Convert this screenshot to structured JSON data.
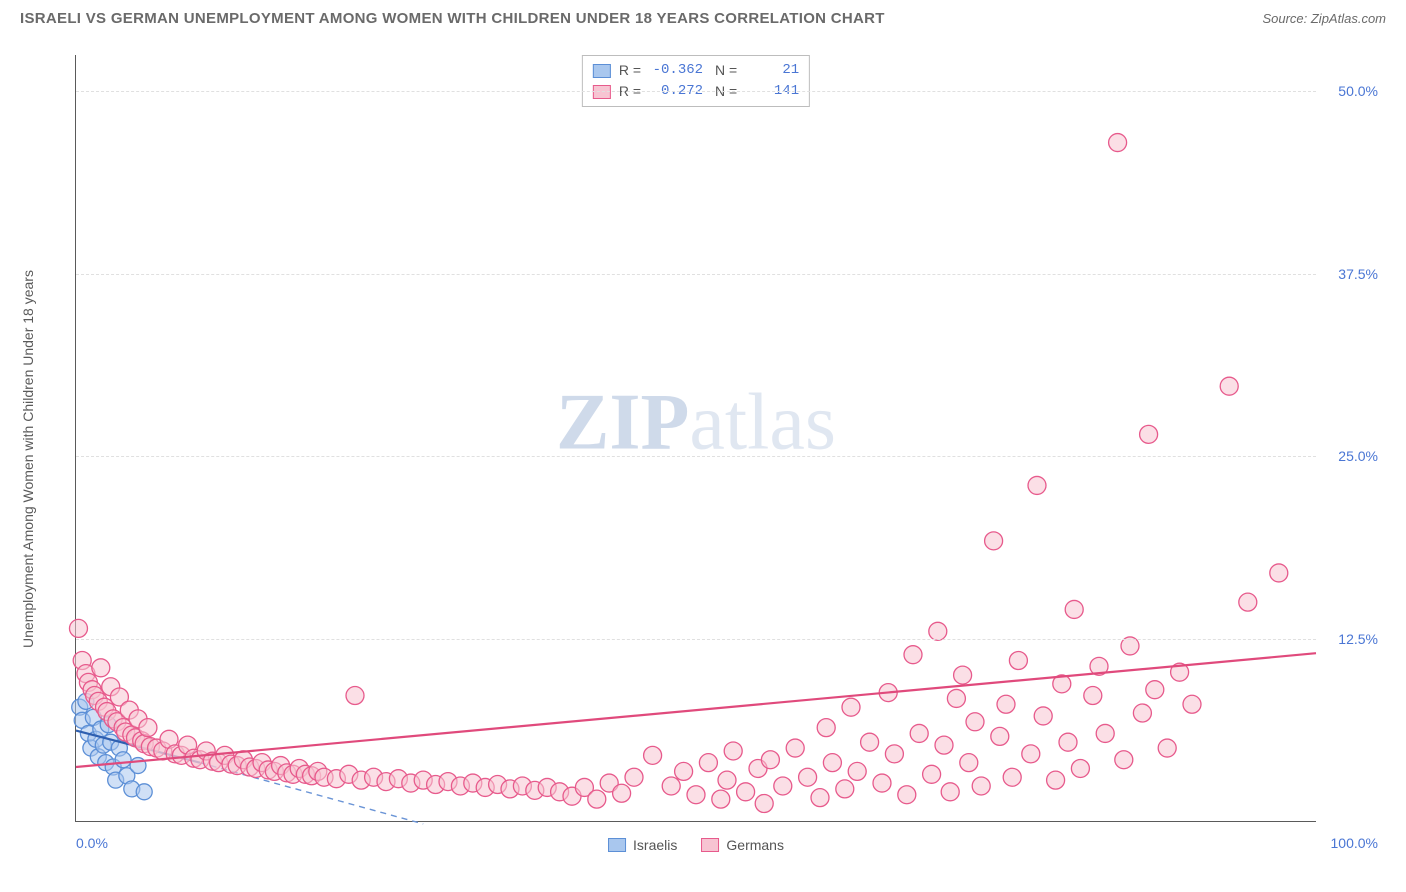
{
  "title": "ISRAELI VS GERMAN UNEMPLOYMENT AMONG WOMEN WITH CHILDREN UNDER 18 YEARS CORRELATION CHART",
  "source": "Source: ZipAtlas.com",
  "ylabel": "Unemployment Among Women with Children Under 18 years",
  "watermark_bold": "ZIP",
  "watermark_light": "atlas",
  "chart": {
    "type": "scatter",
    "xlim": [
      0,
      100
    ],
    "ylim": [
      0,
      52.5
    ],
    "yticks": [
      {
        "v": 12.5,
        "label": "12.5%"
      },
      {
        "v": 25.0,
        "label": "25.0%"
      },
      {
        "v": 37.5,
        "label": "37.5%"
      },
      {
        "v": 50.0,
        "label": "50.0%"
      }
    ],
    "xticks": [
      {
        "v": 0,
        "label": "0.0%",
        "align": "left"
      },
      {
        "v": 100,
        "label": "100.0%",
        "align": "right"
      }
    ],
    "grid_color": "#e0e0e0",
    "background": "#ffffff",
    "series": [
      {
        "name": "Israelis",
        "color_fill": "#a9c7ee",
        "color_stroke": "#5c8fd6",
        "marker_r": 8,
        "R": "-0.362",
        "N": "21",
        "trend": {
          "x1": 0,
          "y1": 6.2,
          "x2": 10,
          "y2": 4.0,
          "color": "#2e5fb0",
          "dash": false
        },
        "trend_ext": {
          "x1": 10,
          "y1": 4.0,
          "x2": 28,
          "y2": -0.2,
          "color": "#6a94d6",
          "dash": true
        },
        "points": [
          [
            0.3,
            7.8
          ],
          [
            0.5,
            6.9
          ],
          [
            0.8,
            8.2
          ],
          [
            1.0,
            6.0
          ],
          [
            1.2,
            5.0
          ],
          [
            1.4,
            7.1
          ],
          [
            1.6,
            5.6
          ],
          [
            1.8,
            4.4
          ],
          [
            2.0,
            6.3
          ],
          [
            2.2,
            5.2
          ],
          [
            2.4,
            4.0
          ],
          [
            2.6,
            6.6
          ],
          [
            2.8,
            5.4
          ],
          [
            3.0,
            3.7
          ],
          [
            3.2,
            2.8
          ],
          [
            3.5,
            5.0
          ],
          [
            3.8,
            4.2
          ],
          [
            4.1,
            3.1
          ],
          [
            4.5,
            2.2
          ],
          [
            5.0,
            3.8
          ],
          [
            5.5,
            2.0
          ]
        ]
      },
      {
        "name": "Germans",
        "color_fill": "#f7c4d2",
        "color_stroke": "#e75a8c",
        "marker_r": 9,
        "R": "0.272",
        "N": "141",
        "trend": {
          "x1": 0,
          "y1": 3.7,
          "x2": 100,
          "y2": 11.5,
          "color": "#e04a7c",
          "dash": false
        },
        "points": [
          [
            0.2,
            13.2
          ],
          [
            0.5,
            11.0
          ],
          [
            0.8,
            10.1
          ],
          [
            1.0,
            9.5
          ],
          [
            1.3,
            9.0
          ],
          [
            1.5,
            8.6
          ],
          [
            1.8,
            8.2
          ],
          [
            2.0,
            10.5
          ],
          [
            2.3,
            7.8
          ],
          [
            2.5,
            7.5
          ],
          [
            2.8,
            9.2
          ],
          [
            3.0,
            7.0
          ],
          [
            3.3,
            6.8
          ],
          [
            3.5,
            8.5
          ],
          [
            3.8,
            6.4
          ],
          [
            4.0,
            6.1
          ],
          [
            4.3,
            7.6
          ],
          [
            4.5,
            5.9
          ],
          [
            4.8,
            5.7
          ],
          [
            5.0,
            7.0
          ],
          [
            5.3,
            5.5
          ],
          [
            5.5,
            5.3
          ],
          [
            5.8,
            6.4
          ],
          [
            6.0,
            5.1
          ],
          [
            6.5,
            5.0
          ],
          [
            7.0,
            4.8
          ],
          [
            7.5,
            5.6
          ],
          [
            8.0,
            4.6
          ],
          [
            8.5,
            4.5
          ],
          [
            9.0,
            5.2
          ],
          [
            9.5,
            4.3
          ],
          [
            10.0,
            4.2
          ],
          [
            10.5,
            4.8
          ],
          [
            11.0,
            4.1
          ],
          [
            11.5,
            4.0
          ],
          [
            12.0,
            4.5
          ],
          [
            12.5,
            3.9
          ],
          [
            13.0,
            3.8
          ],
          [
            13.5,
            4.2
          ],
          [
            14.0,
            3.7
          ],
          [
            14.5,
            3.6
          ],
          [
            15.0,
            4.0
          ],
          [
            15.5,
            3.5
          ],
          [
            16.0,
            3.4
          ],
          [
            16.5,
            3.8
          ],
          [
            17.0,
            3.3
          ],
          [
            17.5,
            3.2
          ],
          [
            18.0,
            3.6
          ],
          [
            18.5,
            3.2
          ],
          [
            19.0,
            3.1
          ],
          [
            19.5,
            3.4
          ],
          [
            20.0,
            3.0
          ],
          [
            21.0,
            2.9
          ],
          [
            22.0,
            3.2
          ],
          [
            22.5,
            8.6
          ],
          [
            23.0,
            2.8
          ],
          [
            24.0,
            3.0
          ],
          [
            25.0,
            2.7
          ],
          [
            26.0,
            2.9
          ],
          [
            27.0,
            2.6
          ],
          [
            28.0,
            2.8
          ],
          [
            29.0,
            2.5
          ],
          [
            30.0,
            2.7
          ],
          [
            31.0,
            2.4
          ],
          [
            32.0,
            2.6
          ],
          [
            33.0,
            2.3
          ],
          [
            34.0,
            2.5
          ],
          [
            35.0,
            2.2
          ],
          [
            36.0,
            2.4
          ],
          [
            37.0,
            2.1
          ],
          [
            38.0,
            2.3
          ],
          [
            39.0,
            2.0
          ],
          [
            40.0,
            1.7
          ],
          [
            41.0,
            2.3
          ],
          [
            42.0,
            1.5
          ],
          [
            43.0,
            2.6
          ],
          [
            44.0,
            1.9
          ],
          [
            45.0,
            3.0
          ],
          [
            46.5,
            4.5
          ],
          [
            48.0,
            2.4
          ],
          [
            49.0,
            3.4
          ],
          [
            50.0,
            1.8
          ],
          [
            51.0,
            4.0
          ],
          [
            52.0,
            1.5
          ],
          [
            52.5,
            2.8
          ],
          [
            53.0,
            4.8
          ],
          [
            54.0,
            2.0
          ],
          [
            55.0,
            3.6
          ],
          [
            55.5,
            1.2
          ],
          [
            56.0,
            4.2
          ],
          [
            57.0,
            2.4
          ],
          [
            58.0,
            5.0
          ],
          [
            59.0,
            3.0
          ],
          [
            60.0,
            1.6
          ],
          [
            60.5,
            6.4
          ],
          [
            61.0,
            4.0
          ],
          [
            62.0,
            2.2
          ],
          [
            62.5,
            7.8
          ],
          [
            63.0,
            3.4
          ],
          [
            64.0,
            5.4
          ],
          [
            65.0,
            2.6
          ],
          [
            65.5,
            8.8
          ],
          [
            66.0,
            4.6
          ],
          [
            67.0,
            1.8
          ],
          [
            67.5,
            11.4
          ],
          [
            68.0,
            6.0
          ],
          [
            69.0,
            3.2
          ],
          [
            69.5,
            13.0
          ],
          [
            70.0,
            5.2
          ],
          [
            70.5,
            2.0
          ],
          [
            71.0,
            8.4
          ],
          [
            71.5,
            10.0
          ],
          [
            72.0,
            4.0
          ],
          [
            72.5,
            6.8
          ],
          [
            73.0,
            2.4
          ],
          [
            74.0,
            19.2
          ],
          [
            74.5,
            5.8
          ],
          [
            75.0,
            8.0
          ],
          [
            75.5,
            3.0
          ],
          [
            76.0,
            11.0
          ],
          [
            77.0,
            4.6
          ],
          [
            77.5,
            23.0
          ],
          [
            78.0,
            7.2
          ],
          [
            79.0,
            2.8
          ],
          [
            79.5,
            9.4
          ],
          [
            80.0,
            5.4
          ],
          [
            80.5,
            14.5
          ],
          [
            81.0,
            3.6
          ],
          [
            82.0,
            8.6
          ],
          [
            82.5,
            10.6
          ],
          [
            83.0,
            6.0
          ],
          [
            84.0,
            46.5
          ],
          [
            84.5,
            4.2
          ],
          [
            85.0,
            12.0
          ],
          [
            86.0,
            7.4
          ],
          [
            86.5,
            26.5
          ],
          [
            87.0,
            9.0
          ],
          [
            88.0,
            5.0
          ],
          [
            89.0,
            10.2
          ],
          [
            90.0,
            8.0
          ],
          [
            93.0,
            29.8
          ],
          [
            94.5,
            15.0
          ],
          [
            97.0,
            17.0
          ]
        ]
      }
    ],
    "legend_bottom": [
      {
        "label": "Israelis",
        "fill": "#a9c7ee",
        "stroke": "#5c8fd6"
      },
      {
        "label": "Germans",
        "fill": "#f7c4d2",
        "stroke": "#e75a8c"
      }
    ]
  }
}
